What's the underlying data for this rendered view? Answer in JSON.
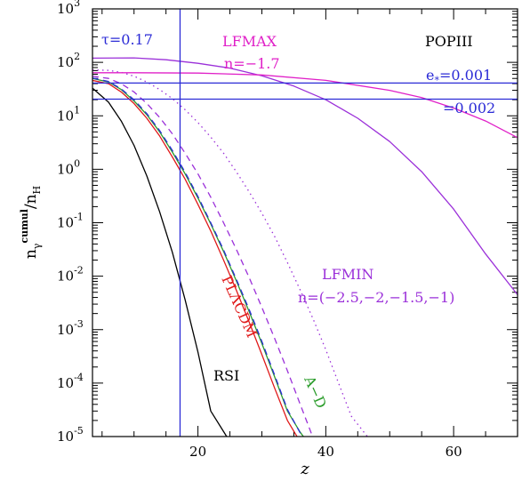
{
  "chart_data": {
    "type": "line",
    "xlabel": "z",
    "ylabel": {
      "n": "n",
      "sub": "γ",
      "sup": "cumul",
      "sep": "/",
      "denom": "n",
      "denom_sub": "H"
    },
    "xlim": [
      3.5,
      70
    ],
    "ylim_log10": [
      -5,
      3
    ],
    "log_y": true,
    "x_ticks": [
      20,
      40,
      60
    ],
    "y_ticks": [
      {
        "exp": 3,
        "label": "10",
        "sup": "3"
      },
      {
        "exp": 2,
        "label": "10",
        "sup": "2"
      },
      {
        "exp": 1,
        "label": "10",
        "sup": "1"
      },
      {
        "exp": 0,
        "label": "10",
        "sup": "0"
      },
      {
        "exp": -1,
        "label": "10",
        "sup": "-1"
      },
      {
        "exp": -2,
        "label": "10",
        "sup": "-2"
      },
      {
        "exp": -3,
        "label": "10",
        "sup": "-3"
      },
      {
        "exp": -4,
        "label": "10",
        "sup": "-4"
      },
      {
        "exp": -5,
        "label": "10",
        "sup": "-5"
      }
    ],
    "vlines": [
      {
        "x": 17.2,
        "color": "#2b2bd6"
      }
    ],
    "hlines": [
      {
        "y": 41,
        "color": "#2b2bd6"
      },
      {
        "y": 20.5,
        "color": "#2b2bd6"
      }
    ],
    "series": [
      {
        "key": "rsi",
        "color": "#000000",
        "dash": "",
        "points": [
          [
            3.5,
            33
          ],
          [
            6,
            18
          ],
          [
            8,
            8
          ],
          [
            10,
            2.8
          ],
          [
            12,
            0.75
          ],
          [
            14,
            0.16
          ],
          [
            16,
            0.028
          ],
          [
            18,
            0.0036
          ],
          [
            20,
            0.00038
          ],
          [
            22,
            3e-05
          ],
          [
            24.5,
            1e-05
          ]
        ]
      },
      {
        "key": "placdm",
        "color": "#e01a1a",
        "dash": "",
        "points": [
          [
            3.5,
            46
          ],
          [
            6,
            40
          ],
          [
            8,
            28
          ],
          [
            10,
            17
          ],
          [
            12,
            9
          ],
          [
            14,
            4.2
          ],
          [
            16,
            1.7
          ],
          [
            18,
            0.65
          ],
          [
            20,
            0.22
          ],
          [
            22,
            0.07
          ],
          [
            24,
            0.02
          ],
          [
            26,
            0.0055
          ],
          [
            28,
            0.0014
          ],
          [
            30,
            0.00034
          ],
          [
            32,
            8e-05
          ],
          [
            34,
            2e-05
          ],
          [
            35.5,
            1e-05
          ]
        ]
      },
      {
        "key": "ad",
        "color": "#2a9c2a",
        "dash": "",
        "points": [
          [
            3.5,
            50
          ],
          [
            6,
            43
          ],
          [
            8,
            31
          ],
          [
            10,
            19
          ],
          [
            12,
            10.5
          ],
          [
            14,
            5
          ],
          [
            16,
            2.1
          ],
          [
            18,
            0.82
          ],
          [
            20,
            0.29
          ],
          [
            22,
            0.095
          ],
          [
            24,
            0.029
          ],
          [
            26,
            0.0082
          ],
          [
            28,
            0.0022
          ],
          [
            30,
            0.00055
          ],
          [
            32,
            0.00013
          ],
          [
            34,
            3e-05
          ],
          [
            36,
            1.2e-05
          ],
          [
            36.5,
            1e-05
          ]
        ]
      },
      {
        "key": "ad_dash",
        "color": "#2b2bd6",
        "dash": "7,5",
        "points": [
          [
            3.5,
            51
          ],
          [
            6,
            44
          ],
          [
            8,
            32
          ],
          [
            10,
            20
          ],
          [
            12,
            11
          ],
          [
            14,
            5.3
          ],
          [
            16,
            2.25
          ],
          [
            18,
            0.88
          ],
          [
            20,
            0.31
          ],
          [
            22,
            0.1
          ],
          [
            24,
            0.031
          ],
          [
            26,
            0.0088
          ],
          [
            28,
            0.0024
          ],
          [
            30,
            0.0006
          ],
          [
            32,
            0.00014
          ],
          [
            34,
            3.2e-05
          ],
          [
            36.3,
            1e-05
          ]
        ]
      },
      {
        "key": "lfmin_dash",
        "color": "#9b30d9",
        "dash": "7,5",
        "points": [
          [
            3.5,
            55
          ],
          [
            6,
            50
          ],
          [
            8,
            40
          ],
          [
            10,
            28
          ],
          [
            12,
            17
          ],
          [
            14,
            9.3
          ],
          [
            16,
            4.6
          ],
          [
            18,
            2
          ],
          [
            20,
            0.82
          ],
          [
            22,
            0.3
          ],
          [
            24,
            0.1
          ],
          [
            26,
            0.032
          ],
          [
            28,
            0.0095
          ],
          [
            30,
            0.0026
          ],
          [
            32,
            0.00068
          ],
          [
            34,
            0.00017
          ],
          [
            36,
            4e-05
          ],
          [
            38,
            9.5e-06
          ],
          [
            38.2,
            1e-05
          ]
        ]
      },
      {
        "key": "lfmin_dot",
        "color": "#9b30d9",
        "dash": "1.5,4",
        "points": [
          [
            3.5,
            72
          ],
          [
            6,
            71
          ],
          [
            8,
            65
          ],
          [
            10,
            55
          ],
          [
            12,
            43
          ],
          [
            14,
            31
          ],
          [
            16,
            21
          ],
          [
            18,
            13
          ],
          [
            20,
            7.5
          ],
          [
            22,
            4
          ],
          [
            24,
            2
          ],
          [
            26,
            0.9
          ],
          [
            28,
            0.38
          ],
          [
            30,
            0.15
          ],
          [
            32,
            0.055
          ],
          [
            34,
            0.018
          ],
          [
            36,
            0.0055
          ],
          [
            38,
            0.0016
          ],
          [
            40,
            0.00042
          ],
          [
            42,
            0.0001
          ],
          [
            44,
            2.4e-05
          ],
          [
            46.5,
            1e-05
          ]
        ]
      },
      {
        "key": "popiii_low",
        "color": "#9b30d9",
        "dash": "",
        "points": [
          [
            3.5,
            120
          ],
          [
            10,
            121
          ],
          [
            15,
            112
          ],
          [
            20,
            96
          ],
          [
            25,
            78
          ],
          [
            30,
            56
          ],
          [
            35,
            36
          ],
          [
            40,
            20
          ],
          [
            45,
            9
          ],
          [
            50,
            3.3
          ],
          [
            55,
            0.9
          ],
          [
            60,
            0.18
          ],
          [
            65,
            0.026
          ],
          [
            70,
            0.0045
          ]
        ]
      },
      {
        "key": "popiii_high",
        "color": "#e020c8",
        "dash": "",
        "points": [
          [
            3.5,
            64
          ],
          [
            10,
            64
          ],
          [
            20,
            63
          ],
          [
            30,
            58
          ],
          [
            40,
            46
          ],
          [
            50,
            30
          ],
          [
            55,
            22
          ],
          [
            60,
            14
          ],
          [
            65,
            8
          ],
          [
            70,
            3.9
          ]
        ]
      }
    ]
  },
  "labels": {
    "tau": "τ=0.17",
    "lfmax": "LFMAX",
    "lfmax_n": "n=−1.7",
    "popiii": "POPIII",
    "e_star_main": "e",
    "e_star_sub": "*",
    "e_star_val": "=0.001",
    "e_star2": "=0.002",
    "lfmin": "LFMIN",
    "lfmin_n": "n=(−2.5,−2,−1.5,−1)",
    "placdm": "PLΛCDM",
    "ad": "A−D",
    "rsi": "RSI"
  },
  "colors": {
    "blue": "#2b2bd6",
    "magenta": "#e020c8",
    "purple": "#9b30d9",
    "red": "#e01a1a",
    "green": "#2a9c2a",
    "black": "#000000"
  }
}
